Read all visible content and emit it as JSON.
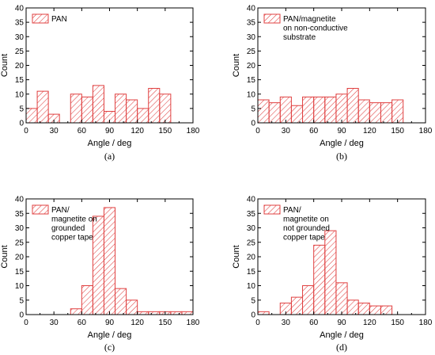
{
  "panels": [
    {
      "caption": "(a)",
      "chart_data": {
        "type": "bar",
        "xlabel": "Angle / deg",
        "ylabel": "Count",
        "xlim": [
          0,
          180
        ],
        "ylim": [
          0,
          40
        ],
        "xticks": [
          0,
          30,
          60,
          90,
          120,
          150,
          180
        ],
        "yticks": [
          0,
          5,
          10,
          15,
          20,
          25,
          30,
          35,
          40
        ],
        "bin_width": 12,
        "x": [
          6,
          18,
          30,
          42,
          54,
          66,
          78,
          90,
          102,
          114,
          126,
          138,
          150,
          162,
          174
        ],
        "values": [
          5,
          11,
          3,
          0,
          10,
          9,
          13,
          4,
          10,
          8,
          5,
          12,
          10,
          0,
          0
        ],
        "legend": {
          "lines": [
            "PAN"
          ],
          "position": "top-left"
        },
        "grid": false
      }
    },
    {
      "caption": "(b)",
      "chart_data": {
        "type": "bar",
        "xlabel": "Angle / deg",
        "ylabel": "Count",
        "xlim": [
          0,
          180
        ],
        "ylim": [
          0,
          40
        ],
        "xticks": [
          0,
          30,
          60,
          90,
          120,
          150,
          180
        ],
        "yticks": [
          0,
          5,
          10,
          15,
          20,
          25,
          30,
          35,
          40
        ],
        "bin_width": 12,
        "x": [
          6,
          18,
          30,
          42,
          54,
          66,
          78,
          90,
          102,
          114,
          126,
          138,
          150,
          162,
          174
        ],
        "values": [
          8,
          7,
          9,
          6,
          9,
          9,
          9,
          10,
          12,
          8,
          7,
          7,
          8,
          0,
          0
        ],
        "legend": {
          "lines": [
            "PAN/magnetite",
            "on non-conductive",
            "substrate"
          ],
          "position": "top-left"
        },
        "grid": false
      }
    },
    {
      "caption": "(c)",
      "chart_data": {
        "type": "bar",
        "xlabel": "Angle / deg",
        "ylabel": "Count",
        "xlim": [
          0,
          180
        ],
        "ylim": [
          0,
          40
        ],
        "xticks": [
          0,
          30,
          60,
          90,
          120,
          150,
          180
        ],
        "yticks": [
          0,
          5,
          10,
          15,
          20,
          25,
          30,
          35,
          40
        ],
        "bin_width": 12,
        "x": [
          54,
          66,
          78,
          90,
          102,
          114,
          126,
          138,
          150,
          162,
          174
        ],
        "values": [
          2,
          10,
          34,
          37,
          9,
          5,
          1,
          1,
          1,
          1,
          1
        ],
        "legend": {
          "lines": [
            "PAN/",
            "magnetite on",
            "grounded",
            "copper tape"
          ],
          "position": "top-left"
        },
        "grid": false
      }
    },
    {
      "caption": "(d)",
      "chart_data": {
        "type": "bar",
        "xlabel": "Angle / deg",
        "ylabel": "Count",
        "xlim": [
          0,
          180
        ],
        "ylim": [
          0,
          40
        ],
        "xticks": [
          0,
          30,
          60,
          90,
          120,
          150,
          180
        ],
        "yticks": [
          0,
          5,
          10,
          15,
          20,
          25,
          30,
          35,
          40
        ],
        "bin_width": 12,
        "x": [
          6,
          18,
          30,
          42,
          54,
          66,
          78,
          90,
          102,
          114,
          126,
          138,
          150,
          162,
          174
        ],
        "values": [
          1,
          0,
          4,
          6,
          10,
          24,
          29,
          11,
          5,
          4,
          3,
          3,
          0,
          0,
          0
        ],
        "legend": {
          "lines": [
            "PAN/",
            "magnetite on",
            "not grounded",
            "copper tape"
          ],
          "position": "top-left"
        },
        "grid": false
      }
    }
  ],
  "colors": {
    "bar_edge": "#e04040",
    "hatch": "#e04040",
    "axis": "#000000"
  }
}
